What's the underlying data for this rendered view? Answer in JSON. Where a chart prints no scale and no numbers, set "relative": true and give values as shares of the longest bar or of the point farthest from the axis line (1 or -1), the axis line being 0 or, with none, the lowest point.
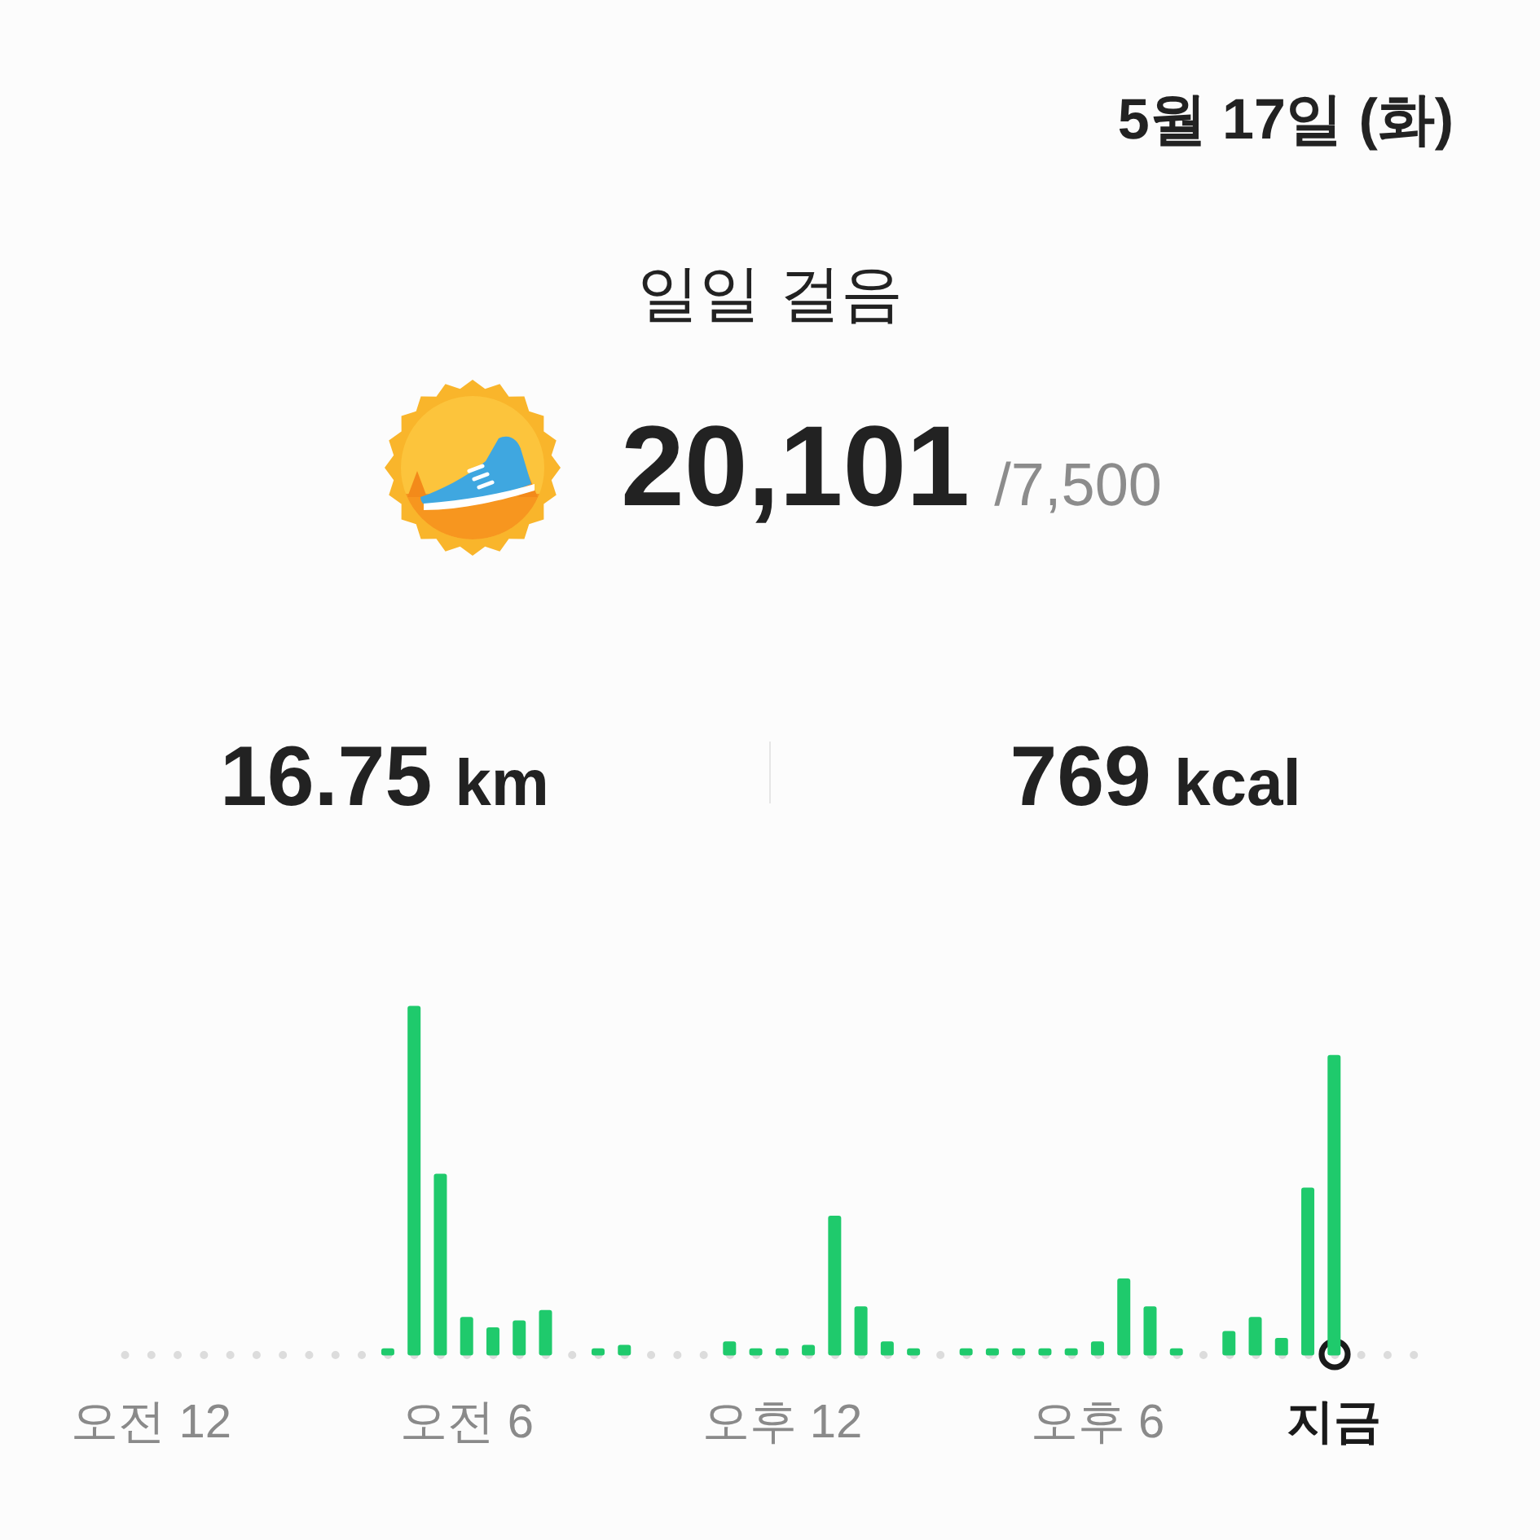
{
  "chart_data": {
    "type": "bar",
    "title": "일일 걸음",
    "annotations": [
      "5월 17일 (화)",
      "20,101",
      "/7,500",
      "16.75 km",
      "769 kcal"
    ],
    "categories": [
      null,
      "오전 12",
      null,
      null,
      null,
      null,
      null,
      null,
      null,
      null,
      null,
      null,
      null,
      "오전 6",
      null,
      null,
      null,
      null,
      null,
      null,
      null,
      null,
      null,
      null,
      null,
      "오후 12",
      null,
      null,
      null,
      null,
      null,
      null,
      null,
      null,
      null,
      null,
      null,
      "오후 6",
      null,
      null,
      null,
      null,
      null,
      null,
      null,
      null,
      "지금",
      null,
      null,
      null
    ],
    "values": [
      0,
      0,
      0,
      0,
      0,
      0,
      0,
      0,
      0,
      0,
      0.02,
      1,
      0.52,
      0.11,
      0.08,
      0.1,
      0.13,
      0,
      0.02,
      0.03,
      0,
      0,
      0,
      0.04,
      0.02,
      0.02,
      0.03,
      0.4,
      0.14,
      0.04,
      0.02,
      0,
      0.02,
      0.02,
      0.02,
      0.02,
      0.02,
      0.04,
      0.22,
      0.14,
      0.02,
      0,
      0.07,
      0.11,
      0.05,
      0.48,
      0.86,
      0,
      0,
      0
    ],
    "color": "#1fca6c",
    "relative": true
  }
}
